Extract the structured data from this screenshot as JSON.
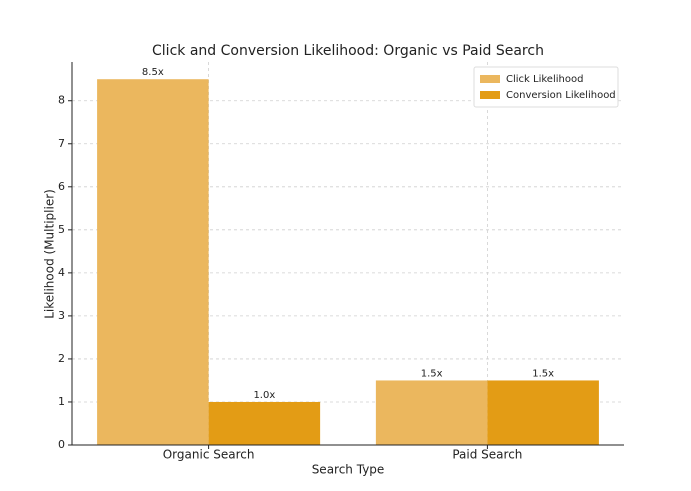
{
  "chart_data": {
    "type": "bar",
    "title": "Click and Conversion Likelihood: Organic vs Paid Search",
    "x_label": "Search Type",
    "y_label": "Likelihood (Multiplier)",
    "categories": [
      "Organic Search",
      "Paid Search"
    ],
    "series": [
      {
        "name": "Click Likelihood",
        "color": "#ebb75e",
        "values": [
          8.5,
          1.5
        ],
        "value_labels": [
          "8.5x",
          "1.5x"
        ]
      },
      {
        "name": "Conversion Likelihood",
        "color": "#e39c15",
        "values": [
          1.0,
          1.5
        ],
        "value_labels": [
          "1.0x",
          "1.5x"
        ]
      }
    ],
    "ylim": [
      0,
      8.9
    ],
    "yticks": [
      0,
      1,
      2,
      3,
      4,
      5,
      6,
      7,
      8
    ],
    "grid": true,
    "legend": "upper right"
  }
}
